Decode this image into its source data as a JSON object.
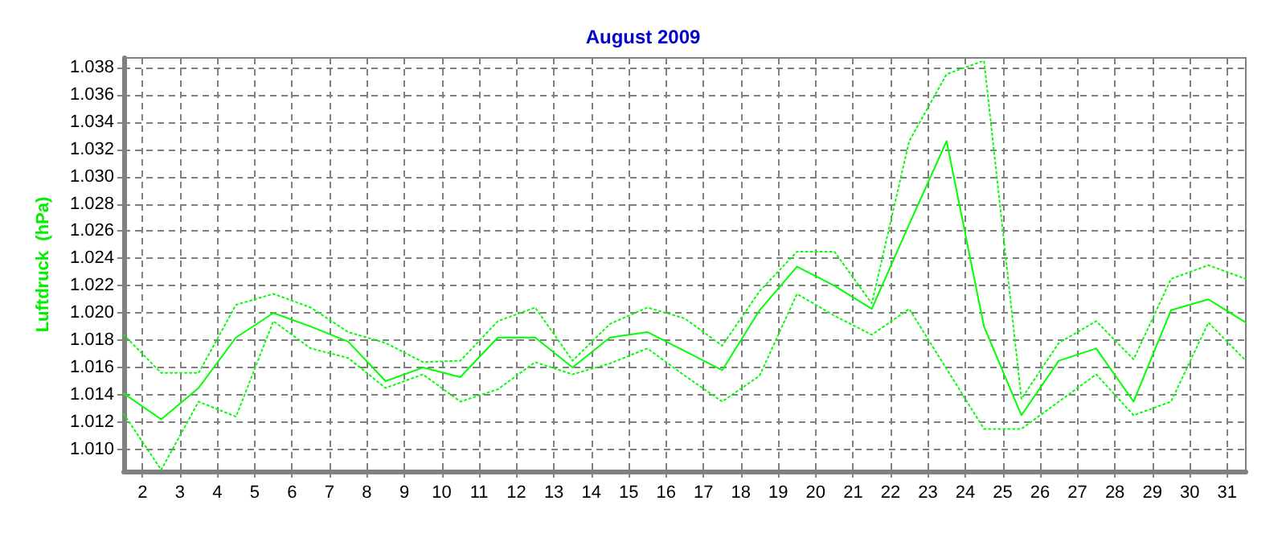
{
  "chart_data": {
    "type": "line",
    "title": "August 2009",
    "ylabel": "Luftdruck  (hPa)",
    "x": [
      1.5,
      2.5,
      3.5,
      4.5,
      5.5,
      6.5,
      7.5,
      8.5,
      9.5,
      10.5,
      11.5,
      12.5,
      13.5,
      14.5,
      15.5,
      16.5,
      17.5,
      18.5,
      19.5,
      20.5,
      21.5,
      22.5,
      23.5,
      24.5,
      25.5,
      26.5,
      27.5,
      28.5,
      29.5,
      30.5,
      31.5
    ],
    "series": [
      {
        "color": "#00ff00",
        "line_style": "dotted",
        "values": [
          1018.4,
          1015.6,
          1015.6,
          1020.6,
          1021.4,
          1020.4,
          1018.6,
          1017.8,
          1016.4,
          1016.5,
          1019.4,
          1020.4,
          1016.5,
          1019.2,
          1020.4,
          1019.6,
          1017.6,
          1021.6,
          1024.5,
          1024.5,
          1020.7,
          1032.6,
          1037.5,
          1038.5,
          1013.7,
          1017.8,
          1019.4,
          1016.6,
          1022.5,
          1023.5,
          1022.5
        ]
      },
      {
        "color": "#00ff00",
        "line_style": "solid",
        "values": [
          1014.1,
          1012.2,
          1014.5,
          1018.2,
          1020.0,
          1019.0,
          1017.9,
          1015.0,
          1016.0,
          1015.3,
          1018.2,
          1018.2,
          1016.0,
          1018.2,
          1018.6,
          1017.2,
          1015.8,
          1020.2,
          1023.4,
          1022.0,
          1020.3,
          1026.5,
          1032.6,
          1019.0,
          1012.5,
          1016.5,
          1017.4,
          1013.5,
          1020.2,
          1021.0,
          1019.3
        ]
      },
      {
        "color": "#00ff00",
        "line_style": "dotted",
        "values": [
          1012.6,
          1008.5,
          1013.5,
          1012.4,
          1019.4,
          1017.4,
          1016.7,
          1014.5,
          1015.5,
          1013.5,
          1014.4,
          1016.4,
          1015.5,
          1016.3,
          1017.4,
          1015.4,
          1013.5,
          1015.4,
          1021.4,
          1019.8,
          1018.4,
          1020.3,
          1015.9,
          1011.5,
          1011.5,
          1013.5,
          1015.5,
          1012.5,
          1013.5,
          1019.3,
          1016.5
        ]
      }
    ],
    "xlim": [
      1.5,
      31.5
    ],
    "xticks": [
      2,
      3,
      4,
      5,
      6,
      7,
      8,
      9,
      10,
      11,
      12,
      13,
      14,
      15,
      16,
      17,
      18,
      19,
      20,
      21,
      22,
      23,
      24,
      25,
      26,
      27,
      28,
      29,
      30,
      31
    ],
    "ylim": [
      1008.4,
      1038.7
    ],
    "yticks": [
      {
        "value": 1010,
        "label": "1.010"
      },
      {
        "value": 1012,
        "label": "1.012"
      },
      {
        "value": 1014,
        "label": "1.014"
      },
      {
        "value": 1016,
        "label": "1.016"
      },
      {
        "value": 1018,
        "label": "1.018"
      },
      {
        "value": 1020,
        "label": "1.020"
      },
      {
        "value": 1022,
        "label": "1.022"
      },
      {
        "value": 1024,
        "label": "1.024"
      },
      {
        "value": 1026,
        "label": "1.026"
      },
      {
        "value": 1028,
        "label": "1.028"
      },
      {
        "value": 1030,
        "label": "1.030"
      },
      {
        "value": 1032,
        "label": "1.032"
      },
      {
        "value": 1034,
        "label": "1.034"
      },
      {
        "value": 1036,
        "label": "1.036"
      },
      {
        "value": 1038,
        "label": "1.038"
      }
    ],
    "grid": true,
    "marker": "none"
  }
}
